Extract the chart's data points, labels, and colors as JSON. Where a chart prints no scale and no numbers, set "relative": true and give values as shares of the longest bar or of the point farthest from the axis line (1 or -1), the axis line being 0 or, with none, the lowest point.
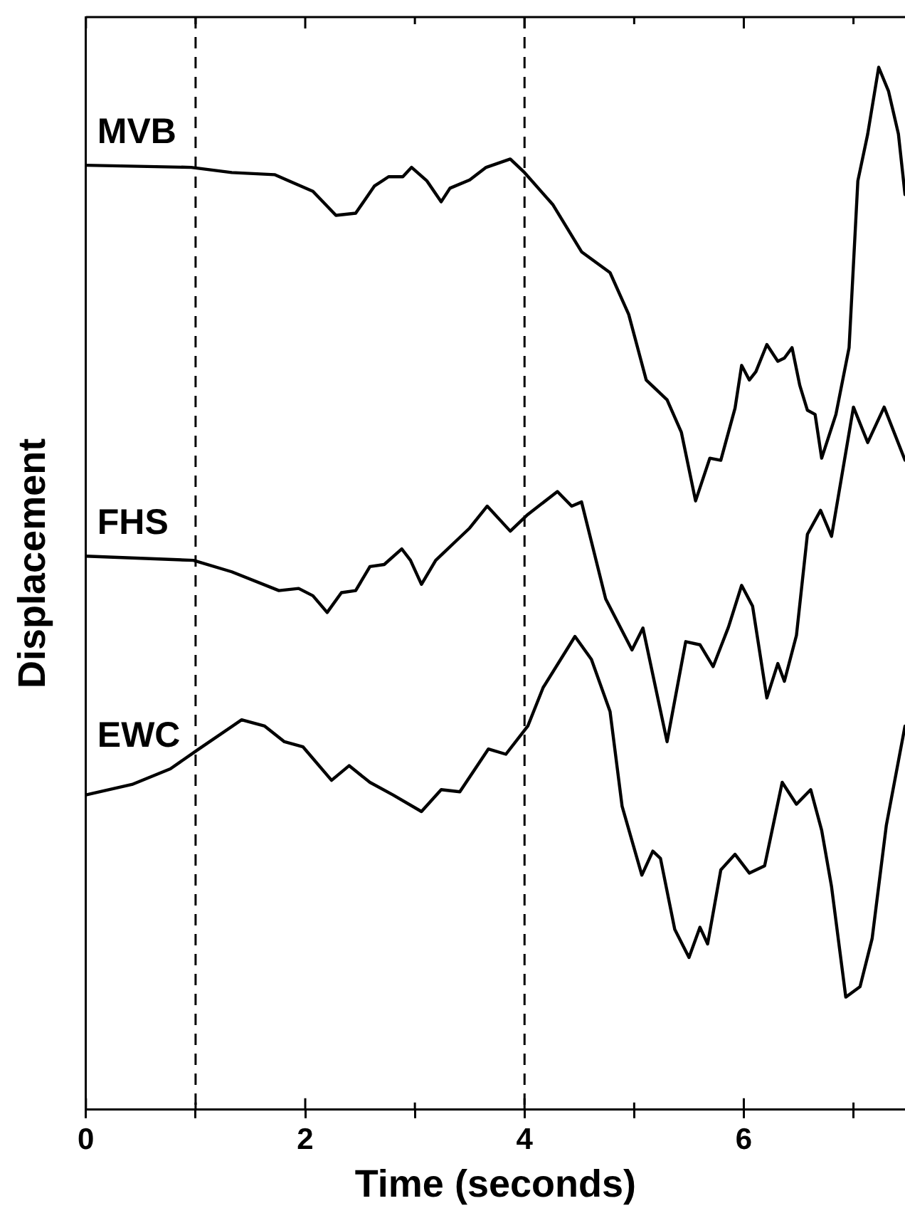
{
  "chart_data": {
    "type": "line",
    "xlabel": "Time (seconds)",
    "ylabel": "Displacement",
    "relative": true,
    "xlim": [
      0,
      7.47
    ],
    "xticks": [
      0,
      {
        "value": 1,
        "label": null
      },
      2,
      {
        "value": 3,
        "label": null
      },
      4,
      {
        "value": 5,
        "label": null
      },
      6,
      {
        "value": 7,
        "label": null
      }
    ],
    "tick_labels": "x",
    "grid": false,
    "legend": false,
    "marker": "none",
    "line_style": "solid",
    "ref_lines": [
      {
        "axis": "x",
        "value": 1,
        "line_style": "dashed",
        "color": "#000000"
      },
      {
        "axis": "x",
        "value": 4,
        "line_style": "dashed",
        "color": "#000000"
      }
    ],
    "series": [
      {
        "name": "MVB",
        "color": "#000000",
        "x": [
          0,
          0.96,
          1.33,
          1.72,
          2.07,
          2.28,
          2.46,
          2.63,
          2.76,
          2.89,
          2.97,
          3.11,
          3.24,
          3.32,
          3.5,
          3.65,
          3.87,
          4.0,
          4.26,
          4.52,
          4.78,
          4.95,
          5.11,
          5.3,
          5.43,
          5.56,
          5.69,
          5.79,
          5.92,
          5.98,
          6.05,
          6.11,
          6.21,
          6.31,
          6.37,
          6.44,
          6.51,
          6.58,
          6.65,
          6.71,
          6.84,
          6.96,
          7.04,
          7.13,
          7.23,
          7.32,
          7.41,
          7.47
        ],
        "values": [
          0.906,
          0.904,
          0.899,
          0.897,
          0.881,
          0.858,
          0.86,
          0.886,
          0.895,
          0.895,
          0.904,
          0.891,
          0.871,
          0.884,
          0.892,
          0.904,
          0.912,
          0.899,
          0.868,
          0.823,
          0.803,
          0.763,
          0.7,
          0.681,
          0.65,
          0.584,
          0.625,
          0.623,
          0.673,
          0.714,
          0.7,
          0.708,
          0.734,
          0.718,
          0.721,
          0.731,
          0.695,
          0.671,
          0.667,
          0.625,
          0.667,
          0.731,
          0.891,
          0.936,
          1.0,
          0.977,
          0.936,
          0.878
        ]
      },
      {
        "name": "FHS",
        "color": "#000000",
        "x": [
          0,
          0.98,
          1.33,
          1.76,
          1.94,
          2.07,
          2.2,
          2.33,
          2.46,
          2.59,
          2.72,
          2.88,
          2.96,
          3.06,
          3.19,
          3.37,
          3.5,
          3.66,
          3.87,
          4.03,
          4.3,
          4.43,
          4.52,
          4.74,
          4.98,
          5.08,
          5.3,
          5.47,
          5.6,
          5.72,
          5.86,
          5.98,
          6.08,
          6.21,
          6.31,
          6.37,
          6.48,
          6.58,
          6.7,
          6.8,
          7.0,
          7.13,
          7.28,
          7.47
        ],
        "values": [
          0.531,
          0.527,
          0.516,
          0.498,
          0.5,
          0.493,
          0.477,
          0.496,
          0.498,
          0.521,
          0.523,
          0.538,
          0.527,
          0.504,
          0.527,
          0.545,
          0.558,
          0.579,
          0.555,
          0.571,
          0.593,
          0.579,
          0.583,
          0.49,
          0.441,
          0.462,
          0.353,
          0.449,
          0.446,
          0.425,
          0.463,
          0.503,
          0.483,
          0.395,
          0.428,
          0.411,
          0.455,
          0.552,
          0.575,
          0.55,
          0.674,
          0.64,
          0.674,
          0.623
        ]
      },
      {
        "name": "EWC",
        "color": "#000000",
        "x": [
          0,
          0.42,
          0.77,
          1.03,
          1.42,
          1.63,
          1.81,
          1.98,
          2.24,
          2.4,
          2.59,
          2.8,
          3.06,
          3.24,
          3.41,
          3.67,
          3.83,
          4.03,
          4.17,
          4.46,
          4.61,
          4.78,
          4.89,
          5.07,
          5.17,
          5.24,
          5.37,
          5.5,
          5.6,
          5.67,
          5.79,
          5.92,
          6.05,
          6.19,
          6.35,
          6.48,
          6.61,
          6.71,
          6.8,
          6.93,
          7.06,
          7.17,
          7.3,
          7.47
        ],
        "values": [
          0.302,
          0.312,
          0.327,
          0.346,
          0.374,
          0.368,
          0.353,
          0.348,
          0.316,
          0.33,
          0.314,
          0.302,
          0.286,
          0.307,
          0.305,
          0.346,
          0.341,
          0.368,
          0.405,
          0.454,
          0.432,
          0.382,
          0.291,
          0.225,
          0.248,
          0.241,
          0.173,
          0.146,
          0.175,
          0.159,
          0.23,
          0.245,
          0.227,
          0.234,
          0.314,
          0.293,
          0.307,
          0.268,
          0.214,
          0.108,
          0.118,
          0.164,
          0.273,
          0.368
        ]
      }
    ]
  }
}
